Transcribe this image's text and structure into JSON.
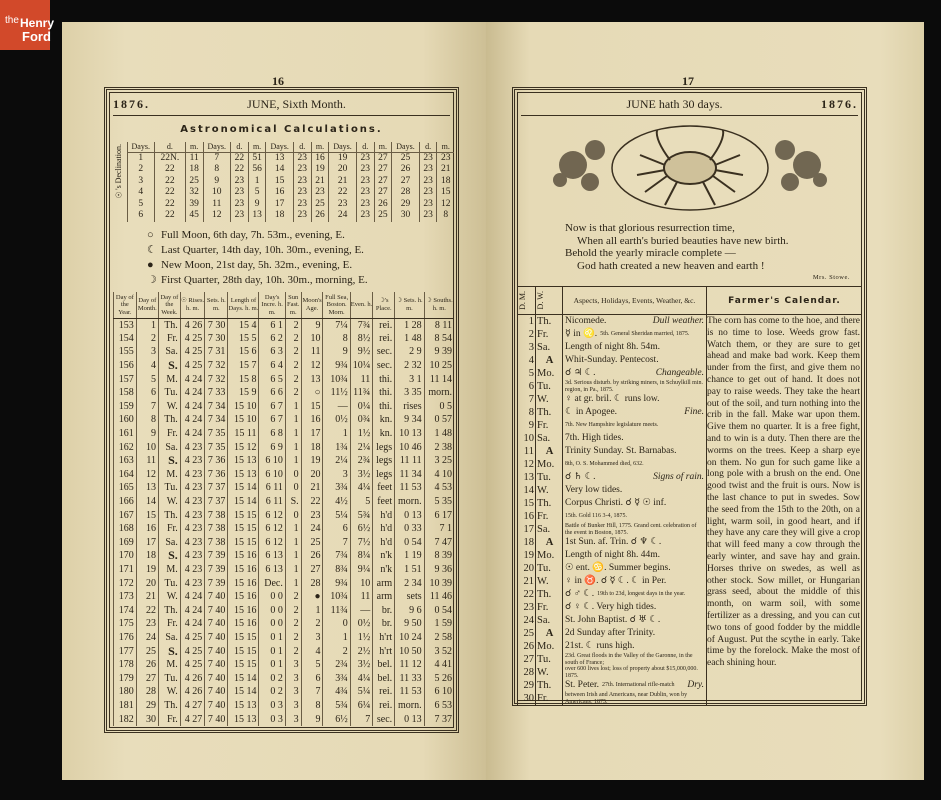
{
  "logo": {
    "line1": "the",
    "line2": "Henry",
    "line3": "Ford"
  },
  "left": {
    "page_number": "16",
    "year": "1876.",
    "title": "JUNE, Sixth Month.",
    "section": "Astronomical Calculations.",
    "declination_label": "☉'s Declination.",
    "declination_headers": [
      "Days.",
      "d.",
      "m."
    ],
    "declination": [
      [
        "1",
        "22N.",
        "11"
      ],
      [
        "2",
        "22",
        "18"
      ],
      [
        "3",
        "22",
        "25"
      ],
      [
        "4",
        "22",
        "32"
      ],
      [
        "5",
        "22",
        "39"
      ],
      [
        "6",
        "22",
        "45"
      ],
      [
        "7",
        "22",
        "51"
      ],
      [
        "8",
        "22",
        "56"
      ],
      [
        "9",
        "23",
        "1"
      ],
      [
        "10",
        "23",
        "5"
      ],
      [
        "11",
        "23",
        "9"
      ],
      [
        "12",
        "23",
        "13"
      ],
      [
        "13",
        "23",
        "16"
      ],
      [
        "14",
        "23",
        "19"
      ],
      [
        "15",
        "23",
        "21"
      ],
      [
        "16",
        "23",
        "23"
      ],
      [
        "17",
        "23",
        "25"
      ],
      [
        "18",
        "23",
        "26"
      ],
      [
        "19",
        "23",
        "27"
      ],
      [
        "20",
        "23",
        "27"
      ],
      [
        "21",
        "23",
        "27"
      ],
      [
        "22",
        "23",
        "27"
      ],
      [
        "23",
        "23",
        "26"
      ],
      [
        "24",
        "23",
        "25"
      ],
      [
        "25",
        "23",
        "23"
      ],
      [
        "26",
        "23",
        "21"
      ],
      [
        "27",
        "23",
        "18"
      ],
      [
        "28",
        "23",
        "15"
      ],
      [
        "29",
        "23",
        "12"
      ],
      [
        "30",
        "23",
        "8"
      ]
    ],
    "moon_phases": [
      {
        "symbol": "○",
        "text": "Full Moon, 6th day, 7h. 53m., evening, E."
      },
      {
        "symbol": "☾",
        "text": "Last Quarter, 14th day, 10h. 30m., evening, E."
      },
      {
        "symbol": "●",
        "text": "New Moon, 21st day, 5h. 32m., evening, E."
      },
      {
        "symbol": "☽",
        "text": "First Quarter, 28th day, 10h. 30m., morning, E."
      }
    ],
    "table_headers": [
      "Day of the Year.",
      "Day of Month.",
      "Day of the Week.",
      "☉ Rises. h. m.",
      "Sets. h. m.",
      "Length of Days. h. m.",
      "Day's Incre. h. m.",
      "Sun Fast. m.",
      "Moon's Age.",
      "Full Sea, Boston. Morn.",
      "Even. h.",
      "☽'s Place.",
      "☽ Sets. h. m.",
      "☽ Souths. h. m."
    ],
    "rows": [
      [
        "153",
        "1",
        "Th.",
        "4 26",
        "7 30",
        "15 4",
        "6 1",
        "2",
        "9",
        "7¼",
        "7¾",
        "rei.",
        "1 28",
        "8 11"
      ],
      [
        "154",
        "2",
        "Fr.",
        "4 25",
        "7 30",
        "15 5",
        "6 2",
        "2",
        "10",
        "8",
        "8½",
        "rei.",
        "1 48",
        "8 54"
      ],
      [
        "155",
        "3",
        "Sa.",
        "4 25",
        "7 31",
        "15 6",
        "6 3",
        "2",
        "11",
        "9",
        "9½",
        "sec.",
        "2 9",
        "9 39"
      ],
      [
        "156",
        "4",
        "S.",
        "4 25",
        "7 32",
        "15 7",
        "6 4",
        "2",
        "12",
        "9¾",
        "10¼",
        "sec.",
        "2 32",
        "10 25"
      ],
      [
        "157",
        "5",
        "M.",
        "4 24",
        "7 32",
        "15 8",
        "6 5",
        "2",
        "13",
        "10¾",
        "11",
        "thi.",
        "3 1",
        "11 14"
      ],
      [
        "158",
        "6",
        "Tu.",
        "4 24",
        "7 33",
        "15 9",
        "6 6",
        "2",
        "○",
        "11½",
        "11¾",
        "thi.",
        "3 35",
        "morn."
      ],
      [
        "159",
        "7",
        "W.",
        "4 24",
        "7 34",
        "15 10",
        "6 7",
        "1",
        "15",
        "—",
        "0¼",
        "thi.",
        "rises",
        "0 5"
      ],
      [
        "160",
        "8",
        "Th.",
        "4 24",
        "7 34",
        "15 10",
        "6 7",
        "1",
        "16",
        "0½",
        "0¾",
        "kn.",
        "9 34",
        "0 57"
      ],
      [
        "161",
        "9",
        "Fr.",
        "4 24",
        "7 35",
        "15 11",
        "6 8",
        "1",
        "17",
        "1",
        "1½",
        "kn.",
        "10 13",
        "1 48"
      ],
      [
        "162",
        "10",
        "Sa.",
        "4 23",
        "7 35",
        "15 12",
        "6 9",
        "1",
        "18",
        "1¾",
        "2¼",
        "legs",
        "10 46",
        "2 38"
      ],
      [
        "163",
        "11",
        "S.",
        "4 23",
        "7 36",
        "15 13",
        "6 10",
        "1",
        "19",
        "2¼",
        "2¾",
        "legs",
        "11 11",
        "3 25"
      ],
      [
        "164",
        "12",
        "M.",
        "4 23",
        "7 36",
        "15 13",
        "6 10",
        "0",
        "20",
        "3",
        "3½",
        "legs",
        "11 34",
        "4 10"
      ],
      [
        "165",
        "13",
        "Tu.",
        "4 23",
        "7 37",
        "15 14",
        "6 11",
        "0",
        "21",
        "3¾",
        "4¼",
        "feet",
        "11 53",
        "4 53"
      ],
      [
        "166",
        "14",
        "W.",
        "4 23",
        "7 37",
        "15 14",
        "6 11",
        "S.",
        "22",
        "4½",
        "5",
        "feet",
        "morn.",
        "5 35"
      ],
      [
        "167",
        "15",
        "Th.",
        "4 23",
        "7 38",
        "15 15",
        "6 12",
        "0",
        "23",
        "5¼",
        "5¾",
        "h'd",
        "0 13",
        "6 17"
      ],
      [
        "168",
        "16",
        "Fr.",
        "4 23",
        "7 38",
        "15 15",
        "6 12",
        "1",
        "24",
        "6",
        "6½",
        "h'd",
        "0 33",
        "7 1"
      ],
      [
        "169",
        "17",
        "Sa.",
        "4 23",
        "7 38",
        "15 15",
        "6 12",
        "1",
        "25",
        "7",
        "7½",
        "h'd",
        "0 54",
        "7 47"
      ],
      [
        "170",
        "18",
        "S.",
        "4 23",
        "7 39",
        "15 16",
        "6 13",
        "1",
        "26",
        "7¾",
        "8¼",
        "n'k",
        "1 19",
        "8 39"
      ],
      [
        "171",
        "19",
        "M.",
        "4 23",
        "7 39",
        "15 16",
        "6 13",
        "1",
        "27",
        "8¾",
        "9¼",
        "n'k",
        "1 51",
        "9 36"
      ],
      [
        "172",
        "20",
        "Tu.",
        "4 23",
        "7 39",
        "15 16",
        "Dec.",
        "1",
        "28",
        "9¾",
        "10",
        "arm",
        "2 34",
        "10 39"
      ],
      [
        "173",
        "21",
        "W.",
        "4 24",
        "7 40",
        "15 16",
        "0 0",
        "2",
        "●",
        "10¾",
        "11",
        "arm",
        "sets",
        "11 46"
      ],
      [
        "174",
        "22",
        "Th.",
        "4 24",
        "7 40",
        "15 16",
        "0 0",
        "2",
        "1",
        "11¾",
        "—",
        "br.",
        "9 6",
        "0 54"
      ],
      [
        "175",
        "23",
        "Fr.",
        "4 24",
        "7 40",
        "15 16",
        "0 0",
        "2",
        "2",
        "0",
        "0½",
        "br.",
        "9 50",
        "1 59"
      ],
      [
        "176",
        "24",
        "Sa.",
        "4 25",
        "7 40",
        "15 15",
        "0 1",
        "2",
        "3",
        "1",
        "1½",
        "h'rt",
        "10 24",
        "2 58"
      ],
      [
        "177",
        "25",
        "S.",
        "4 25",
        "7 40",
        "15 15",
        "0 1",
        "2",
        "4",
        "2",
        "2½",
        "h'rt",
        "10 50",
        "3 52"
      ],
      [
        "178",
        "26",
        "M.",
        "4 25",
        "7 40",
        "15 15",
        "0 1",
        "3",
        "5",
        "2¾",
        "3½",
        "bel.",
        "11 12",
        "4 41"
      ],
      [
        "179",
        "27",
        "Tu.",
        "4 26",
        "7 40",
        "15 14",
        "0 2",
        "3",
        "6",
        "3¾",
        "4¼",
        "bel.",
        "11 33",
        "5 26"
      ],
      [
        "180",
        "28",
        "W.",
        "4 26",
        "7 40",
        "15 14",
        "0 2",
        "3",
        "7",
        "4¾",
        "5¼",
        "rei.",
        "11 53",
        "6 10"
      ],
      [
        "181",
        "29",
        "Th.",
        "4 27",
        "7 40",
        "15 13",
        "0 3",
        "3",
        "8",
        "5¾",
        "6¼",
        "rei.",
        "morn.",
        "6 53"
      ],
      [
        "182",
        "30",
        "Fr.",
        "4 27",
        "7 40",
        "15 13",
        "0 3",
        "3",
        "9",
        "6½",
        "7",
        "sec.",
        "0 13",
        "7 37"
      ]
    ]
  },
  "right": {
    "page_number": "17",
    "title": "JUNE hath 30 days.",
    "year": "1876.",
    "poem": [
      "Now is that glorious resurrection time,",
      "When all earth's buried beauties have new birth.",
      "Behold the yearly miracle complete —",
      "God hath created a new heaven and earth !"
    ],
    "poem_author": "Mrs. Stowe.",
    "headers": {
      "dm": "D. M.",
      "dw": "D. W.",
      "aspects": "Aspects, Holidays, Events, Weather, &c.",
      "farmer": "Farmer's Calendar."
    },
    "rows": [
      {
        "dm": "1",
        "dw": "Th.",
        "main": "Nicomede.",
        "right": "Dull weather.",
        "note": ""
      },
      {
        "dm": "2",
        "dw": "Fr.",
        "main": "☿ in ♌.",
        "right": "",
        "note": "5th. General Sheridan married, 1875."
      },
      {
        "dm": "3",
        "dw": "Sa.",
        "main": "Length of night 8h. 54m.",
        "right": "",
        "note": ""
      },
      {
        "dm": "4",
        "dw": "A",
        "main": "Whit-Sunday.  Pentecost.",
        "right": "",
        "note": ""
      },
      {
        "dm": "5",
        "dw": "Mo.",
        "main": "☌ ♃ ☾.",
        "right": "Changeable.",
        "note": ""
      },
      {
        "dm": "6",
        "dw": "Tu.",
        "main": "",
        "right": "",
        "note": "3d. Serious disturb. by striking miners, in Schuylkill min. region, in Pa., 1875."
      },
      {
        "dm": "7",
        "dw": "W.",
        "main": "♀ at gr. bril.  ☾ runs low.",
        "right": "",
        "note": ""
      },
      {
        "dm": "8",
        "dw": "Th.",
        "main": "☾ in Apogee.",
        "right": "Fine.",
        "note": ""
      },
      {
        "dm": "9",
        "dw": "Fr.",
        "main": "",
        "right": "",
        "note": "7th. New Hampshire legislature meets."
      },
      {
        "dm": "10",
        "dw": "Sa.",
        "main": "7th. High tides.",
        "right": "",
        "note": ""
      },
      {
        "dm": "11",
        "dw": "A",
        "main": "Trinity Sunday.  St. Barnabas.",
        "right": "",
        "note": ""
      },
      {
        "dm": "12",
        "dw": "Mo.",
        "main": "",
        "right": "",
        "note": "8th, O. S. Mohammed died, 632."
      },
      {
        "dm": "13",
        "dw": "Tu.",
        "main": "☌ ♄ ☾.",
        "right": "Signs of rain.",
        "note": ""
      },
      {
        "dm": "14",
        "dw": "W.",
        "main": "Very low tides.",
        "right": "",
        "note": ""
      },
      {
        "dm": "15",
        "dw": "Th.",
        "main": "Corpus Christi.  ☌ ☿ ☉ inf.",
        "right": "",
        "note": ""
      },
      {
        "dm": "16",
        "dw": "Fr.",
        "main": "",
        "right": "",
        "note": "15th. Gold 116 3-4, 1875."
      },
      {
        "dm": "17",
        "dw": "Sa.",
        "main": "",
        "right": "",
        "note": "Battle of Bunker Hill, 1775. Grand cent. celebration of the event in Boston, 1875."
      },
      {
        "dm": "18",
        "dw": "A",
        "main": "1st Sun. af. Trin.  ☌ ♆ ☾.",
        "right": "",
        "note": ""
      },
      {
        "dm": "19",
        "dw": "Mo.",
        "main": "Length of night 8h. 44m.",
        "right": "",
        "note": ""
      },
      {
        "dm": "20",
        "dw": "Tu.",
        "main": "☉ ent. ♋.  Summer begins.",
        "right": "",
        "note": ""
      },
      {
        "dm": "21",
        "dw": "W.",
        "main": "♀ in ♉. ☌ ☿ ☾. ☾ in Per.",
        "right": "",
        "note": ""
      },
      {
        "dm": "22",
        "dw": "Th.",
        "main": "☌ ♂ ☾.",
        "right": "",
        "note": "19th to 23d, longest days in the year."
      },
      {
        "dm": "23",
        "dw": "Fr.",
        "main": "☌ ♀ ☾.  Very high tides.",
        "right": "",
        "note": ""
      },
      {
        "dm": "24",
        "dw": "Sa.",
        "main": "St. John Baptist.  ☌ ♅ ☾.",
        "right": "",
        "note": ""
      },
      {
        "dm": "25",
        "dw": "A",
        "main": "2d Sunday after Trinity.",
        "right": "",
        "note": ""
      },
      {
        "dm": "26",
        "dw": "Mo.",
        "main": "21st. ☾ runs high.",
        "right": "",
        "note": ""
      },
      {
        "dm": "27",
        "dw": "Tu.",
        "main": "",
        "right": "",
        "note": "23d. Great floods in the Valley of the Garonne, in the south of France;"
      },
      {
        "dm": "28",
        "dw": "W.",
        "main": "",
        "right": "",
        "note": "over 600 lives lost; loss of property about $15,000,000. 1875."
      },
      {
        "dm": "29",
        "dw": "Th.",
        "main": "St. Peter.",
        "right": "Dry.",
        "note": "27th. International rifle-match"
      },
      {
        "dm": "30",
        "dw": "Fr.",
        "main": "",
        "right": "",
        "note": "between Irish and Americans, near Dublin, won by Americans, 1875."
      }
    ],
    "farmers_calendar": "The corn has come to the hoe, and there is no time to lose. Weeds grow fast. Watch them, or they are sure to get ahead and make bad work. Keep them under from the first, and give them no chance to get out of hand. It does not pay to raise weeds. They take the heart out of the soil, and turn nothing into the crib in the fall. Make war upon them. Give them no quarter. It is a free fight, and to win is a duty. Then there are the worms on the trees. Keep a sharp eye on them. No gun for such game like a long pole with a brush on the end. One good twist and the fruit is ours. Now is the last chance to put in swedes. Sow the seed from the 15th to the 20th, on a light, warm soil, in good heart, and if they have any care they will give a crop that will feed many a cow through the early winter, and save hay and grain. Horses thrive on swedes, as well as other stock. Sow millet, or Hungarian grass seed, about the middle of this month, on warm soil, with some fertilizer as a dressing, and you can cut two tons of good fodder by the middle of August. Put the scythe in early. Take time by the forelock. Make the most of each shining hour."
  }
}
